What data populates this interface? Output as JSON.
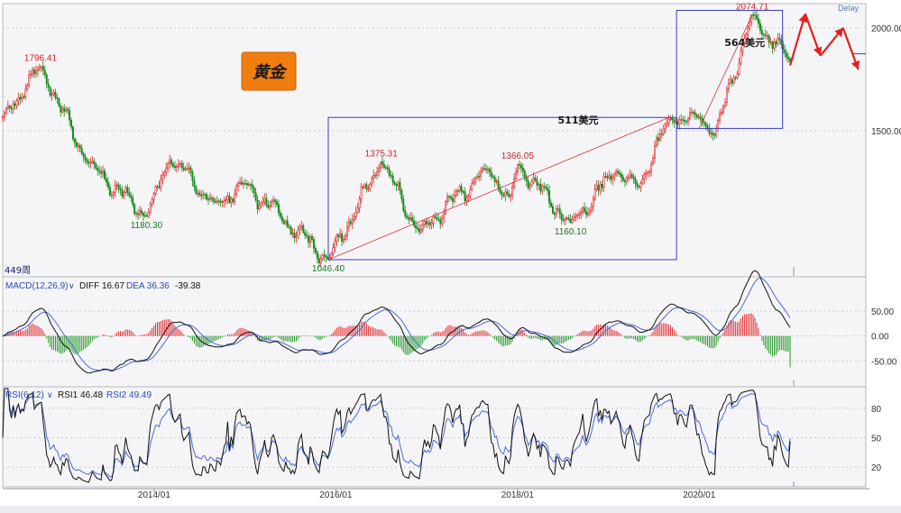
{
  "chart_data": [
    {
      "type": "candlestick",
      "title": "黄金",
      "badge": "Delay",
      "period_count_label": "449周",
      "y_ticks": [
        {
          "value": 2000,
          "label": "2000.00"
        },
        {
          "value": 1500,
          "label": "1500.00"
        }
      ],
      "ylim": [
        1000,
        2140
      ],
      "y_scale": "log",
      "x_ticks": [
        "2014/01",
        "2016/01",
        "2018/01",
        "2020/01"
      ],
      "xlim": [
        "2012-05",
        "2021-11"
      ],
      "anchors": [
        {
          "date": "2012-05",
          "close": 1560
        },
        {
          "date": "2012-10",
          "close": 1796.41
        },
        {
          "date": "2013-04",
          "close": 1380
        },
        {
          "date": "2013-12",
          "close": 1180.3
        },
        {
          "date": "2014-03",
          "close": 1385
        },
        {
          "date": "2014-09",
          "close": 1225
        },
        {
          "date": "2015-01",
          "close": 1295
        },
        {
          "date": "2015-12",
          "close": 1046.4
        },
        {
          "date": "2016-07",
          "close": 1375.31
        },
        {
          "date": "2016-12",
          "close": 1130
        },
        {
          "date": "2017-09",
          "close": 1350
        },
        {
          "date": "2017-12",
          "close": 1240
        },
        {
          "date": "2018-01",
          "close": 1366.05
        },
        {
          "date": "2018-08",
          "close": 1160.1
        },
        {
          "date": "2019-02",
          "close": 1340
        },
        {
          "date": "2019-05",
          "close": 1280
        },
        {
          "date": "2019-09",
          "close": 1550
        },
        {
          "date": "2020-01",
          "close": 1560
        },
        {
          "date": "2020-03",
          "close": 1480
        },
        {
          "date": "2020-08",
          "close": 2074.71
        },
        {
          "date": "2021-01",
          "close": 1820
        }
      ],
      "price_labels": [
        {
          "text": "1796.41",
          "date": "2012-10",
          "value": 1796.41,
          "kind": "high"
        },
        {
          "text": "1180.30",
          "date": "2013-12",
          "value": 1180.3,
          "kind": "low"
        },
        {
          "text": "1046.40",
          "date": "2015-12",
          "value": 1046.4,
          "kind": "low"
        },
        {
          "text": "1375.31",
          "date": "2016-07",
          "value": 1375.31,
          "kind": "high"
        },
        {
          "text": "1366.05",
          "date": "2018-01",
          "value": 1366.05,
          "kind": "high"
        },
        {
          "text": "1160.10",
          "date": "2018-08",
          "value": 1160.1,
          "kind": "low"
        },
        {
          "text": "2074.71",
          "date": "2020-08",
          "value": 2074.71,
          "kind": "high"
        }
      ],
      "annotations": [
        {
          "text": "511美元",
          "date": "2018-09",
          "value": 1530
        },
        {
          "text": "564美元",
          "date": "2020-07",
          "value": 1900
        }
      ],
      "boxes": [
        {
          "date_from": "2015-12",
          "date_to": "2019-10",
          "low": 1046.4,
          "high": 1557
        },
        {
          "date_from": "2019-10",
          "date_to": "2020-12",
          "low": 1510,
          "high": 2100
        }
      ],
      "trend_lines": [
        {
          "from": {
            "date": "2015-12",
            "value": 1046.4
          },
          "to": {
            "date": "2019-09",
            "value": 1557
          }
        },
        {
          "from": {
            "date": "2020-01",
            "value": 1510
          },
          "to": {
            "date": "2020-08",
            "value": 2074.71
          }
        }
      ],
      "projection": [
        {
          "date": "2021-01",
          "value": 1800
        },
        {
          "date": "2021-03",
          "value": 2080
        },
        {
          "date": "2021-05",
          "value": 1850
        },
        {
          "date": "2021-08",
          "value": 2000
        },
        {
          "date": "2021-10",
          "value": 1780
        }
      ],
      "current_marker": {
        "date": "2021-10",
        "value": 1860
      },
      "colors": {
        "up": "#e02424",
        "down": "#1a8a1a",
        "box": "#3a3ac8",
        "trend": "#e03030",
        "projection": "#e61e1e",
        "badge_bg": "#f07d0f",
        "badge_text": "#1a1a1a"
      }
    },
    {
      "type": "macd",
      "indicator_label": "MACD(12,26,9)",
      "values_text": [
        "DIFF 16.67",
        "DEA 36.36",
        "-39.38"
      ],
      "y_ticks": [
        {
          "value": 50,
          "label": "50.00"
        },
        {
          "value": 0,
          "label": "0.00"
        },
        {
          "value": -50,
          "label": "-50.00"
        }
      ],
      "ylim": [
        -100,
        115
      ],
      "last": {
        "diff": 16.67,
        "dea": 36.36,
        "hist": -39.38
      },
      "colors": {
        "diff": "#111111",
        "dea": "#4a6ad8",
        "hist_pos": "#e03030",
        "hist_neg": "#2a9a2a"
      }
    },
    {
      "type": "rsi",
      "indicator_label": "RSI(6,12)",
      "values_text": [
        "RSI1 46.48",
        "RSI2 49.49"
      ],
      "y_ticks": [
        {
          "value": 80,
          "label": "80"
        },
        {
          "value": 50,
          "label": "50"
        },
        {
          "value": 20,
          "label": "20"
        }
      ],
      "ylim": [
        0,
        100
      ],
      "last": {
        "rsi1": 46.48,
        "rsi2": 49.49
      },
      "colors": {
        "rsi1": "#111111",
        "rsi2": "#4a6ad8"
      }
    }
  ]
}
